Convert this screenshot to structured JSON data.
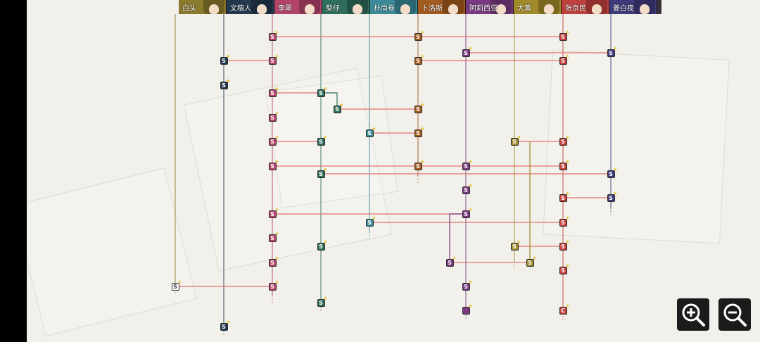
{
  "characters": [
    {
      "name": "白头",
      "color": "#8a7a2c"
    },
    {
      "name": "文稿人",
      "color": "#23394f"
    },
    {
      "name": "李翠",
      "color": "#b2446a"
    },
    {
      "name": "梨仔",
      "color": "#2f6e5c"
    },
    {
      "name": "朴尚卷",
      "color": "#3a8a98"
    },
    {
      "name": "卜洛斯",
      "color": "#a25a1e"
    },
    {
      "name": "阿莉西亚",
      "color": "#7a3a82"
    },
    {
      "name": "大黄",
      "color": "#a08a2a"
    },
    {
      "name": "张京民",
      "color": "#c0403e"
    },
    {
      "name": "姜白夜",
      "color": "#3f3a7a"
    }
  ],
  "node_labels": {
    "scene": "S",
    "special": "C",
    "star": "★"
  },
  "zoom": {
    "in_label": "zoom-in",
    "out_label": "zoom-out"
  }
}
